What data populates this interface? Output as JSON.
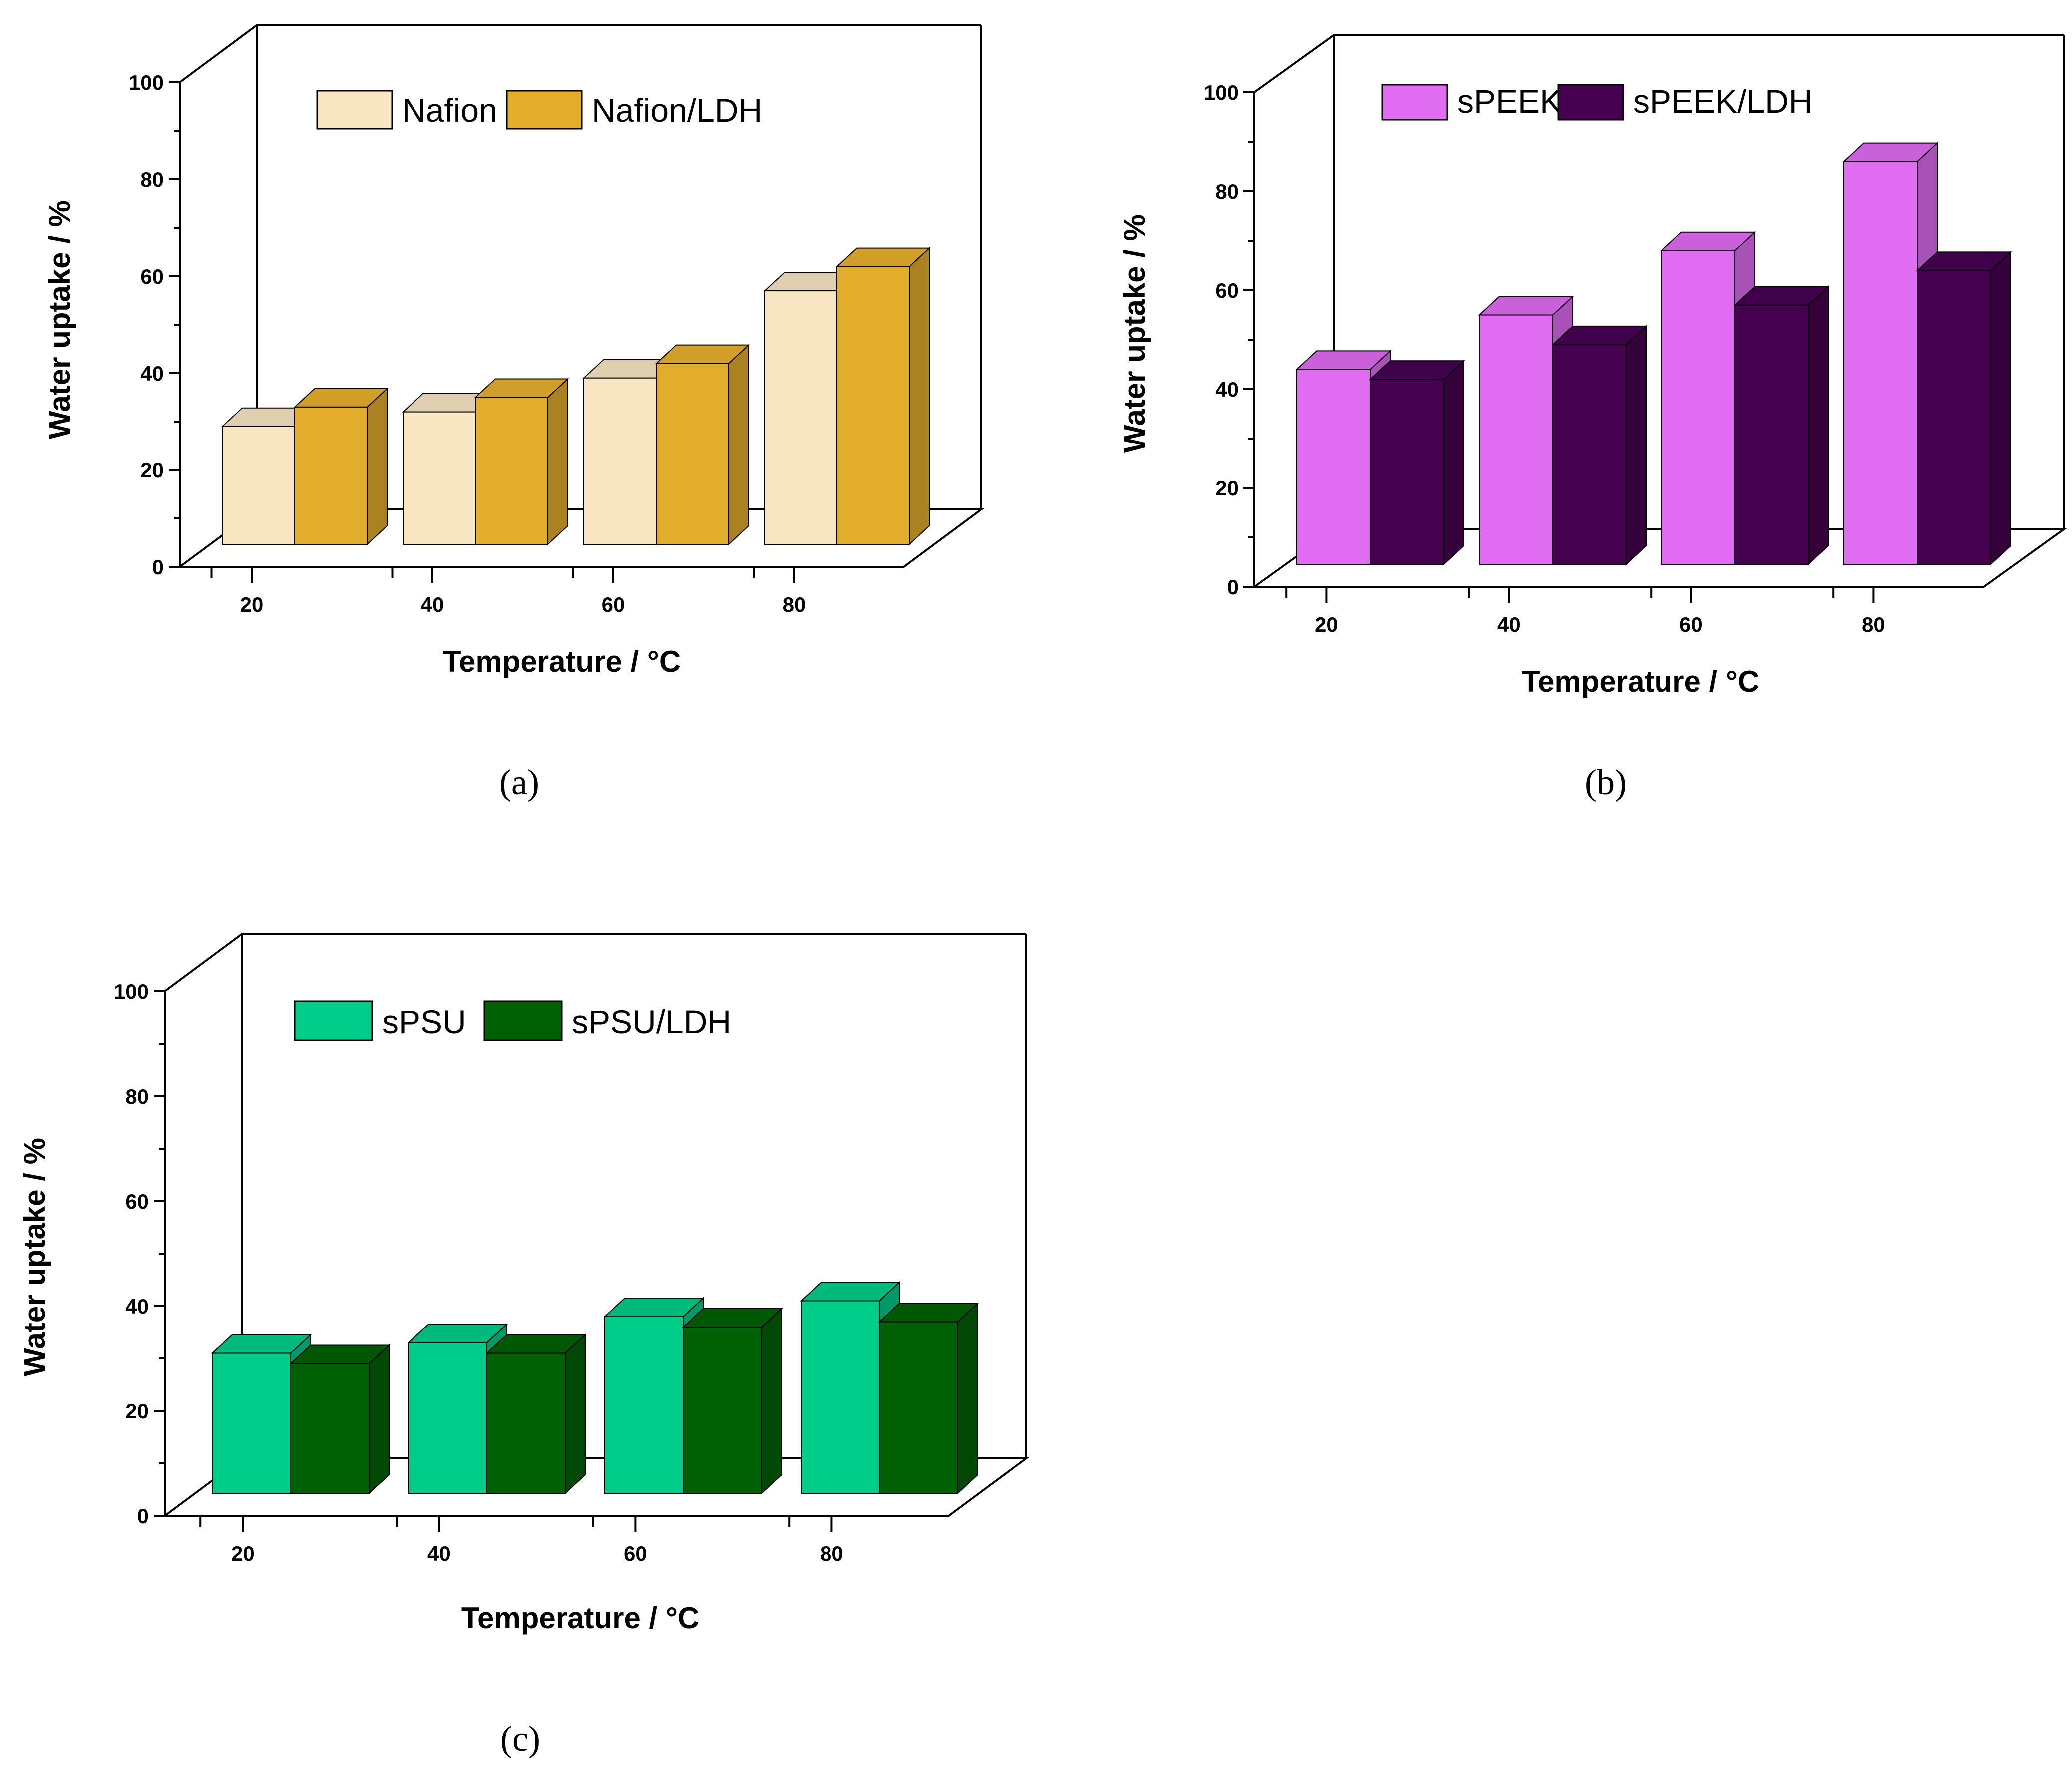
{
  "colors": {
    "nafion": "#f8e6c3",
    "nafion_ldh": "#e3ad2c",
    "speek": "#e06cf2",
    "speek_ldh": "#45014f",
    "spsu": "#00cd8a",
    "spsu_ldh": "#006004",
    "axis": "#000000"
  },
  "chart_data": [
    {
      "id": "a",
      "type": "bar",
      "panel_label": "(a)",
      "xlabel": "Temperature / °C",
      "ylabel": "Water uptake / %",
      "ylim": [
        0,
        100
      ],
      "yticks": [
        "0",
        "20",
        "40",
        "60",
        "80",
        "100"
      ],
      "categories": [
        "20",
        "40",
        "60",
        "80"
      ],
      "series": [
        {
          "name": "Nafion",
          "color_key": "nafion",
          "values": [
            29,
            32,
            39,
            57
          ]
        },
        {
          "name": "Nafion/LDH",
          "color_key": "nafion_ldh",
          "values": [
            33,
            35,
            42,
            62
          ]
        }
      ],
      "legend": "top-left"
    },
    {
      "id": "b",
      "type": "bar",
      "panel_label": "(b)",
      "xlabel": "Temperature / °C",
      "ylabel": "Water uptake / %",
      "ylim": [
        0,
        100
      ],
      "yticks": [
        "0",
        "20",
        "40",
        "60",
        "80",
        "100"
      ],
      "categories": [
        "20",
        "40",
        "60",
        "80"
      ],
      "series": [
        {
          "name": "sPEEK",
          "color_key": "speek",
          "values": [
            44,
            55,
            68,
            86
          ]
        },
        {
          "name": "sPEEK/LDH",
          "color_key": "speek_ldh",
          "values": [
            42,
            49,
            57,
            64
          ]
        }
      ],
      "legend": "top-left"
    },
    {
      "id": "c",
      "type": "bar",
      "panel_label": "(c)",
      "xlabel": "Temperature / °C",
      "ylabel": "Water uptake / %",
      "ylim": [
        0,
        100
      ],
      "yticks": [
        "0",
        "20",
        "40",
        "60",
        "80",
        "100"
      ],
      "categories": [
        "20",
        "40",
        "60",
        "80"
      ],
      "series": [
        {
          "name": "sPSU",
          "color_key": "spsu",
          "values": [
            31,
            33,
            38,
            41
          ]
        },
        {
          "name": "sPSU/LDH",
          "color_key": "spsu_ldh",
          "values": [
            29,
            31,
            36,
            37
          ]
        }
      ],
      "legend": "top-left"
    }
  ]
}
